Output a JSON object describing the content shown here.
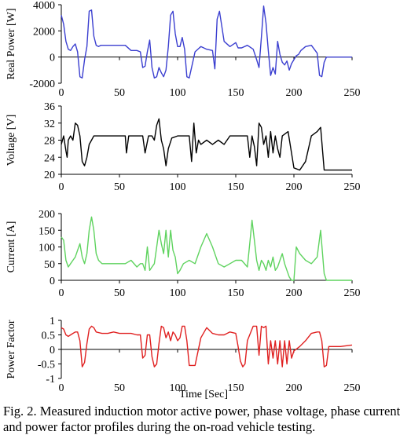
{
  "figure": {
    "caption": "Fig. 2. Measured induction motor active power, phase voltage, phase current\nand power factor profiles during the on-road vehicle testing."
  },
  "chart_data": [
    {
      "type": "line",
      "ylabel": "Real Power [W]",
      "xlabel": "",
      "xlim": [
        0,
        250
      ],
      "ylim": [
        -2000,
        4000
      ],
      "xticks": [
        0,
        50,
        100,
        150,
        200,
        250
      ],
      "yticks": [
        -2000,
        0,
        2000,
        4000
      ],
      "color": "#3b3fd0",
      "x": [
        0,
        2,
        4,
        6,
        8,
        10,
        12,
        14,
        16,
        18,
        20,
        22,
        24,
        26,
        28,
        30,
        32,
        34,
        36,
        38,
        40,
        45,
        50,
        55,
        60,
        65,
        68,
        70,
        72,
        74,
        76,
        78,
        80,
        82,
        84,
        86,
        88,
        90,
        92,
        94,
        96,
        98,
        100,
        102,
        104,
        106,
        108,
        110,
        115,
        120,
        125,
        130,
        132,
        134,
        136,
        140,
        145,
        150,
        152,
        155,
        160,
        165,
        168,
        170,
        172,
        174,
        176,
        178,
        180,
        182,
        184,
        186,
        188,
        190,
        192,
        194,
        196,
        198,
        200,
        202,
        204,
        206,
        210,
        215,
        220,
        222,
        224,
        226,
        228,
        230,
        240,
        250
      ],
      "y": [
        3200,
        2500,
        1200,
        600,
        500,
        800,
        1000,
        400,
        -1500,
        -1600,
        -200,
        800,
        3500,
        3600,
        1600,
        900,
        800,
        900,
        900,
        900,
        900,
        900,
        900,
        900,
        500,
        500,
        400,
        -800,
        -700,
        400,
        1300,
        -800,
        -1600,
        -1500,
        -800,
        -1200,
        -1500,
        -1000,
        800,
        3200,
        3500,
        1800,
        800,
        800,
        1500,
        600,
        -1500,
        -1600,
        400,
        800,
        600,
        500,
        -900,
        2900,
        3500,
        1200,
        800,
        1100,
        700,
        700,
        900,
        600,
        -200,
        -800,
        1500,
        3900,
        2600,
        500,
        -1400,
        -800,
        -1300,
        1200,
        200,
        -400,
        -600,
        -300,
        -1000,
        -500,
        -200,
        100,
        200,
        500,
        800,
        900,
        300,
        -1400,
        -1500,
        -400,
        0,
        0,
        0,
        0
      ]
    },
    {
      "type": "line",
      "ylabel": "Voltage [V]",
      "xlabel": "",
      "xlim": [
        0,
        250
      ],
      "ylim": [
        20,
        36
      ],
      "xticks": [
        0,
        50,
        100,
        150,
        200,
        250
      ],
      "yticks": [
        20,
        24,
        28,
        32,
        36
      ],
      "color": "#000000",
      "x": [
        0,
        2,
        4,
        5,
        6,
        8,
        10,
        12,
        14,
        16,
        18,
        20,
        22,
        24,
        26,
        28,
        30,
        35,
        40,
        50,
        55,
        56,
        58,
        60,
        65,
        70,
        72,
        75,
        78,
        80,
        82,
        84,
        86,
        88,
        90,
        92,
        95,
        100,
        105,
        110,
        112,
        114,
        116,
        118,
        120,
        125,
        130,
        135,
        140,
        145,
        150,
        155,
        160,
        162,
        164,
        166,
        168,
        170,
        172,
        174,
        176,
        178,
        180,
        182,
        184,
        186,
        188,
        190,
        195,
        200,
        205,
        210,
        215,
        220,
        223,
        226,
        230,
        240,
        250
      ],
      "y": [
        27,
        29,
        25.5,
        24,
        28,
        29,
        28,
        32,
        31.5,
        29,
        23,
        22,
        24,
        27,
        28,
        29,
        29,
        29,
        29,
        29,
        29,
        25,
        29,
        29,
        29,
        29,
        25,
        29,
        29,
        28,
        31.5,
        33,
        28,
        26,
        22,
        26,
        28.5,
        29,
        29,
        29,
        23,
        32,
        25,
        28,
        27,
        28,
        27,
        28,
        27,
        29,
        29,
        29,
        29,
        24,
        29,
        26.5,
        22,
        32,
        31,
        27,
        29,
        24,
        30,
        25,
        29,
        26,
        24,
        29,
        30,
        21.5,
        21,
        23,
        29,
        30,
        31,
        21,
        21,
        21,
        21
      ]
    },
    {
      "type": "line",
      "ylabel": "Current [A]",
      "xlabel": "",
      "xlim": [
        0,
        250
      ],
      "ylim": [
        0,
        200
      ],
      "xticks": [
        0,
        50,
        100,
        150,
        200,
        250
      ],
      "yticks": [
        0,
        50,
        100,
        150,
        200
      ],
      "color": "#5fd35f",
      "x": [
        0,
        2,
        4,
        6,
        8,
        10,
        12,
        14,
        16,
        18,
        20,
        22,
        24,
        26,
        28,
        30,
        32,
        35,
        40,
        45,
        50,
        55,
        60,
        65,
        68,
        70,
        72,
        74,
        76,
        78,
        80,
        82,
        84,
        86,
        88,
        90,
        92,
        94,
        96,
        98,
        100,
        102,
        105,
        110,
        115,
        120,
        125,
        130,
        135,
        140,
        145,
        150,
        155,
        160,
        162,
        164,
        166,
        168,
        170,
        172,
        174,
        176,
        178,
        180,
        182,
        184,
        186,
        188,
        190,
        192,
        194,
        196,
        198,
        200,
        202,
        205,
        210,
        215,
        220,
        223,
        226,
        228,
        230,
        240,
        250
      ],
      "y": [
        130,
        120,
        60,
        40,
        50,
        60,
        70,
        90,
        110,
        70,
        50,
        80,
        150,
        190,
        150,
        80,
        60,
        50,
        50,
        50,
        50,
        50,
        60,
        40,
        50,
        50,
        30,
        100,
        30,
        40,
        50,
        100,
        150,
        110,
        80,
        150,
        70,
        150,
        90,
        70,
        20,
        30,
        50,
        60,
        50,
        100,
        140,
        100,
        50,
        40,
        50,
        60,
        60,
        40,
        110,
        180,
        120,
        60,
        30,
        60,
        50,
        30,
        60,
        40,
        70,
        30,
        40,
        60,
        80,
        50,
        30,
        10,
        0,
        0,
        100,
        80,
        60,
        50,
        70,
        150,
        20,
        0,
        0,
        0,
        0
      ]
    },
    {
      "type": "line",
      "ylabel": "Power Factor",
      "xlabel": "Time [Sec]",
      "xlim": [
        0,
        250
      ],
      "ylim": [
        -1,
        1
      ],
      "xticks": [
        0,
        50,
        100,
        150,
        200,
        250
      ],
      "yticks": [
        -1,
        -0.5,
        0,
        0.5,
        1
      ],
      "color": "#e02020",
      "x": [
        0,
        2,
        4,
        6,
        8,
        10,
        12,
        14,
        16,
        18,
        20,
        22,
        24,
        26,
        28,
        30,
        35,
        40,
        45,
        50,
        55,
        60,
        65,
        68,
        70,
        72,
        74,
        76,
        78,
        80,
        82,
        84,
        86,
        88,
        90,
        92,
        94,
        96,
        98,
        100,
        102,
        104,
        106,
        108,
        110,
        115,
        120,
        125,
        130,
        135,
        140,
        145,
        150,
        152,
        154,
        156,
        158,
        160,
        165,
        168,
        170,
        172,
        174,
        176,
        178,
        180,
        182,
        184,
        186,
        188,
        190,
        192,
        194,
        196,
        198,
        200,
        205,
        210,
        215,
        220,
        222,
        224,
        226,
        228,
        230,
        240,
        250
      ],
      "y": [
        0.75,
        0.7,
        0.5,
        0.45,
        0.5,
        0.55,
        0.6,
        0.6,
        0.3,
        -0.6,
        -0.45,
        0.2,
        0.7,
        0.8,
        0.75,
        0.6,
        0.55,
        0.55,
        0.6,
        0.55,
        0.55,
        0.55,
        0.5,
        0.5,
        -0.3,
        -0.2,
        0.5,
        0.5,
        -0.25,
        -0.6,
        -0.5,
        0.2,
        0.8,
        0.75,
        0.4,
        0.6,
        0.3,
        0.6,
        0.5,
        0.3,
        0.4,
        0.8,
        0.8,
        0.3,
        -0.55,
        -0.55,
        0.4,
        0.75,
        0.55,
        0.5,
        0.5,
        0.6,
        0.55,
        0.1,
        -0.4,
        -0.6,
        -0.5,
        0.3,
        0.8,
        0.8,
        -0.2,
        0.8,
        0.75,
        0.8,
        -0.5,
        0.3,
        -0.3,
        0.3,
        -0.5,
        0.3,
        -0.6,
        0.3,
        -0.5,
        0.3,
        -0.3,
        -0.05,
        0.1,
        0.3,
        0.55,
        0.6,
        0.6,
        0.3,
        -0.6,
        -0.55,
        0.1,
        0.1,
        0.15
      ]
    }
  ]
}
